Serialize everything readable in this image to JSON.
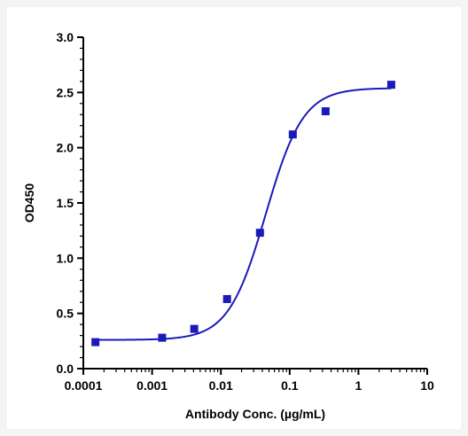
{
  "chart_data": {
    "type": "scatter",
    "xscale": "log",
    "xlabel": "Antibody Conc. (µg/mL)",
    "ylabel": "OD450",
    "xlim": [
      0.0001,
      10
    ],
    "ylim": [
      0,
      3.0
    ],
    "x_ticks": [
      {
        "value": 0.0001,
        "label": "0.0001"
      },
      {
        "value": 0.001,
        "label": "0.001"
      },
      {
        "value": 0.01,
        "label": "0.01"
      },
      {
        "value": 0.1,
        "label": "0.1"
      },
      {
        "value": 1,
        "label": "1"
      },
      {
        "value": 10,
        "label": "10"
      }
    ],
    "y_ticks": [
      {
        "value": 0,
        "label": "0.0"
      },
      {
        "value": 0.5,
        "label": "0.5"
      },
      {
        "value": 1.0,
        "label": "1.0"
      },
      {
        "value": 1.5,
        "label": "1.5"
      },
      {
        "value": 2.0,
        "label": "2.0"
      },
      {
        "value": 2.5,
        "label": "2.5"
      },
      {
        "value": 3.0,
        "label": "3.0"
      }
    ],
    "series": [
      {
        "marker": "square",
        "color": "#1a1ab8",
        "points": [
          {
            "x": 0.00015,
            "y": 0.24
          },
          {
            "x": 0.0014,
            "y": 0.28
          },
          {
            "x": 0.0041,
            "y": 0.36
          },
          {
            "x": 0.0123,
            "y": 0.63
          },
          {
            "x": 0.037,
            "y": 1.23
          },
          {
            "x": 0.111,
            "y": 2.12
          },
          {
            "x": 0.333,
            "y": 2.33
          },
          {
            "x": 3.0,
            "y": 2.57
          }
        ],
        "fit": {
          "model": "4PL",
          "bottom": 0.26,
          "top": 2.54,
          "ec50": 0.045,
          "hill": 1.6,
          "color": "#1a1ab8"
        }
      }
    ],
    "grid": false,
    "legend": "none"
  }
}
